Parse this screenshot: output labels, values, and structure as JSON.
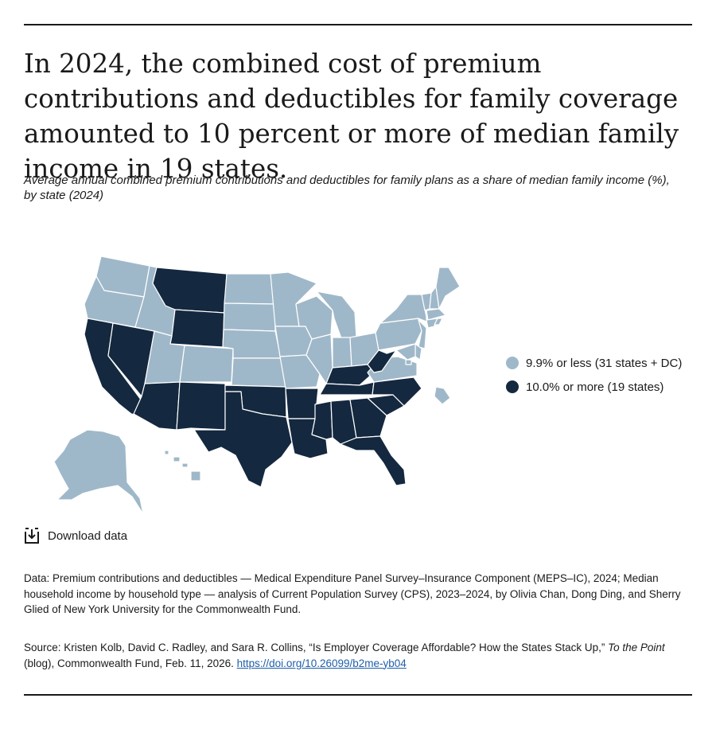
{
  "headline": "In 2024, the combined cost of premium contributions and deductibles for family coverage amounted to 10 percent or more of median family income in 19 states.",
  "subtitle": "Average annual combined premium contributions and deductibles for family plans as a share of median family income (%), by state (2024)",
  "colors": {
    "low": "#9fb8c9",
    "high": "#14283f"
  },
  "legend": [
    {
      "label": "9.9% or less (31 states + DC)",
      "category": "low"
    },
    {
      "label": "10.0% or more (19 states)",
      "category": "high"
    }
  ],
  "map_data": {
    "high_states": [
      "MT",
      "WY",
      "CA",
      "NV",
      "AZ",
      "NM",
      "TX",
      "OK",
      "AR",
      "LA",
      "MS",
      "AL",
      "GA",
      "FL",
      "SC",
      "NC",
      "TN",
      "KY",
      "WV"
    ],
    "low_states": [
      "WA",
      "OR",
      "ID",
      "UT",
      "CO",
      "ND",
      "SD",
      "NE",
      "KS",
      "MN",
      "IA",
      "MO",
      "WI",
      "IL",
      "MI",
      "IN",
      "OH",
      "PA",
      "NY",
      "VT",
      "NH",
      "ME",
      "MA",
      "RI",
      "CT",
      "NJ",
      "DE",
      "MD",
      "DC",
      "VA",
      "AK",
      "HI"
    ]
  },
  "download_label": "Download data",
  "notes": "Data: Premium contributions and deductibles — Medical Expenditure Panel Survey–Insurance Component (MEPS–IC), 2024; Median household income by household type — analysis of Current Population Survey (CPS), 2023–2024, by Olivia Chan, Dong Ding, and Sherry Glied of New York University for the Commonwealth Fund.",
  "source": {
    "prefix": "Source: Kristen Kolb, David C. Radley, and Sara R. Collins, “Is Employer Coverage Affordable? How the States Stack Up,” ",
    "publication": "To the Point",
    "suffix": " (blog), Commonwealth Fund, Feb. 11, 2026. ",
    "link": "https://doi.org/10.26099/b2me-yb04"
  }
}
